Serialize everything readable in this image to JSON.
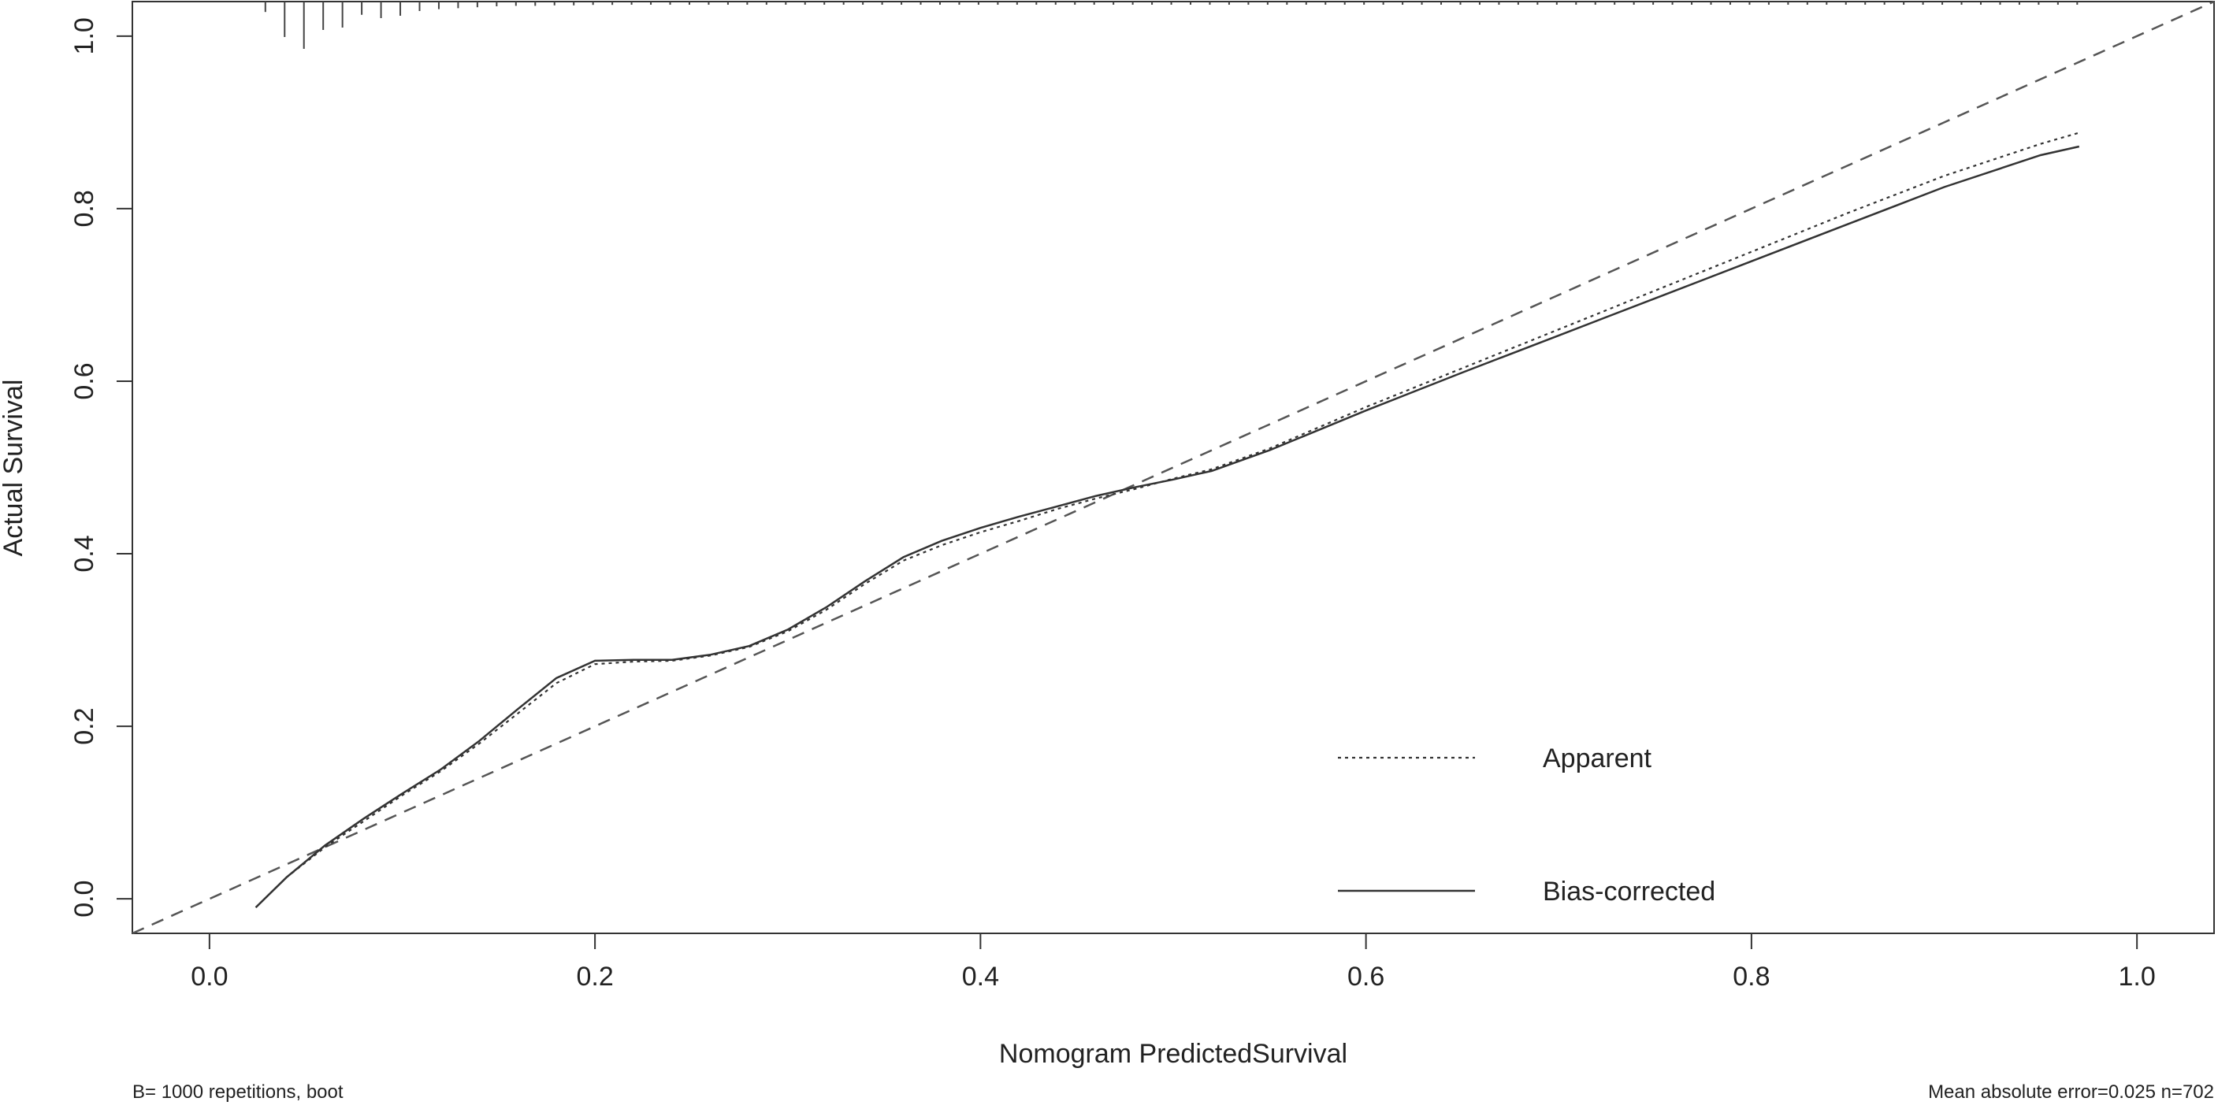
{
  "chart_data": {
    "type": "line",
    "title": "",
    "xlabel": "Nomogram PredictedSurvival",
    "ylabel": "Actual Survival",
    "xlim": [
      -0.04,
      1.04
    ],
    "ylim": [
      -0.04,
      1.04
    ],
    "x_ticks": [
      0.0,
      0.2,
      0.4,
      0.6,
      0.8,
      1.0
    ],
    "x_tick_labels": [
      "0.0",
      "0.2",
      "0.4",
      "0.6",
      "0.8",
      "1.0"
    ],
    "y_ticks": [
      0.0,
      0.2,
      0.4,
      0.6,
      0.8,
      1.0
    ],
    "y_tick_labels": [
      "0.0",
      "0.2",
      "0.4",
      "0.6",
      "0.8",
      "1.0"
    ],
    "grid": false,
    "legend_position": "bottom-right",
    "reference_line": {
      "style": "dashed",
      "x": [
        -0.04,
        1.04
      ],
      "y": [
        -0.04,
        1.04
      ]
    },
    "series": [
      {
        "name": "Apparent",
        "style": "dotted",
        "x": [
          0.024,
          0.04,
          0.06,
          0.08,
          0.1,
          0.12,
          0.14,
          0.16,
          0.18,
          0.2,
          0.22,
          0.24,
          0.26,
          0.28,
          0.3,
          0.32,
          0.34,
          0.36,
          0.38,
          0.4,
          0.42,
          0.44,
          0.46,
          0.48,
          0.5,
          0.52,
          0.55,
          0.6,
          0.65,
          0.7,
          0.75,
          0.8,
          0.85,
          0.9,
          0.95,
          0.97
        ],
        "y": [
          -0.01,
          0.025,
          0.06,
          0.09,
          0.12,
          0.148,
          0.18,
          0.215,
          0.25,
          0.272,
          0.275,
          0.276,
          0.282,
          0.292,
          0.31,
          0.335,
          0.365,
          0.392,
          0.41,
          0.425,
          0.438,
          0.452,
          0.464,
          0.475,
          0.487,
          0.498,
          0.522,
          0.57,
          0.615,
          0.66,
          0.705,
          0.75,
          0.795,
          0.838,
          0.875,
          0.888
        ]
      },
      {
        "name": "Bias-corrected",
        "style": "solid",
        "x": [
          0.024,
          0.04,
          0.06,
          0.08,
          0.1,
          0.12,
          0.14,
          0.16,
          0.18,
          0.2,
          0.22,
          0.24,
          0.26,
          0.28,
          0.3,
          0.32,
          0.34,
          0.36,
          0.38,
          0.4,
          0.42,
          0.44,
          0.46,
          0.48,
          0.5,
          0.52,
          0.55,
          0.6,
          0.65,
          0.7,
          0.75,
          0.8,
          0.85,
          0.9,
          0.95,
          0.97
        ],
        "y": [
          -0.01,
          0.025,
          0.062,
          0.093,
          0.122,
          0.15,
          0.183,
          0.22,
          0.256,
          0.276,
          0.277,
          0.277,
          0.283,
          0.293,
          0.312,
          0.338,
          0.368,
          0.396,
          0.415,
          0.43,
          0.443,
          0.455,
          0.467,
          0.477,
          0.486,
          0.496,
          0.52,
          0.566,
          0.61,
          0.653,
          0.696,
          0.739,
          0.782,
          0.825,
          0.862,
          0.872
        ]
      }
    ],
    "rug": {
      "position": "top",
      "x": [
        0.029,
        0.039,
        0.049,
        0.059,
        0.069,
        0.079,
        0.089,
        0.099,
        0.109,
        0.119,
        0.129,
        0.139,
        0.149,
        0.159,
        0.169,
        0.179,
        0.189,
        0.199,
        0.209,
        0.219,
        0.229,
        0.239,
        0.249,
        0.259,
        0.269,
        0.279,
        0.289,
        0.299,
        0.309,
        0.319,
        0.329,
        0.339,
        0.349,
        0.359,
        0.369,
        0.379,
        0.389,
        0.399,
        0.409,
        0.419,
        0.429,
        0.439,
        0.449,
        0.459,
        0.469,
        0.479,
        0.489,
        0.499,
        0.509,
        0.519,
        0.529,
        0.539,
        0.549,
        0.559,
        0.569,
        0.579,
        0.589,
        0.599,
        0.609,
        0.619,
        0.629,
        0.639,
        0.649,
        0.659,
        0.669,
        0.679,
        0.689,
        0.699,
        0.709,
        0.719,
        0.729,
        0.739,
        0.749,
        0.759,
        0.769,
        0.779,
        0.789,
        0.799,
        0.809,
        0.819,
        0.829,
        0.839,
        0.849,
        0.859,
        0.869,
        0.879,
        0.889,
        0.899,
        0.909,
        0.919,
        0.929,
        0.939,
        0.949,
        0.959,
        0.969
      ],
      "relative_frequency": [
        0.22,
        0.75,
        1.0,
        0.6,
        0.55,
        0.28,
        0.35,
        0.3,
        0.2,
        0.16,
        0.14,
        0.12,
        0.1,
        0.09,
        0.09,
        0.08,
        0.08,
        0.07,
        0.07,
        0.06,
        0.06,
        0.06,
        0.05,
        0.05,
        0.05,
        0.05,
        0.04,
        0.04,
        0.04,
        0.04,
        0.04,
        0.03,
        0.03,
        0.03,
        0.03,
        0.03,
        0.03,
        0.03,
        0.03,
        0.02,
        0.02,
        0.02,
        0.02,
        0.02,
        0.02,
        0.02,
        0.02,
        0.02,
        0.02,
        0.02,
        0.02,
        0.02,
        0.02,
        0.02,
        0.02,
        0.02,
        0.02,
        0.02,
        0.02,
        0.02,
        0.02,
        0.02,
        0.02,
        0.02,
        0.02,
        0.02,
        0.02,
        0.02,
        0.02,
        0.02,
        0.02,
        0.02,
        0.02,
        0.02,
        0.02,
        0.02,
        0.02,
        0.02,
        0.02,
        0.02,
        0.02,
        0.02,
        0.02,
        0.02,
        0.02,
        0.02,
        0.02,
        0.02,
        0.02,
        0.02,
        0.02,
        0.02,
        0.02,
        0.02,
        0.02
      ]
    },
    "footnote_left": "B= 1000 repetitions, boot",
    "footnote_right": "Mean absolute error=0.025 n=702"
  }
}
